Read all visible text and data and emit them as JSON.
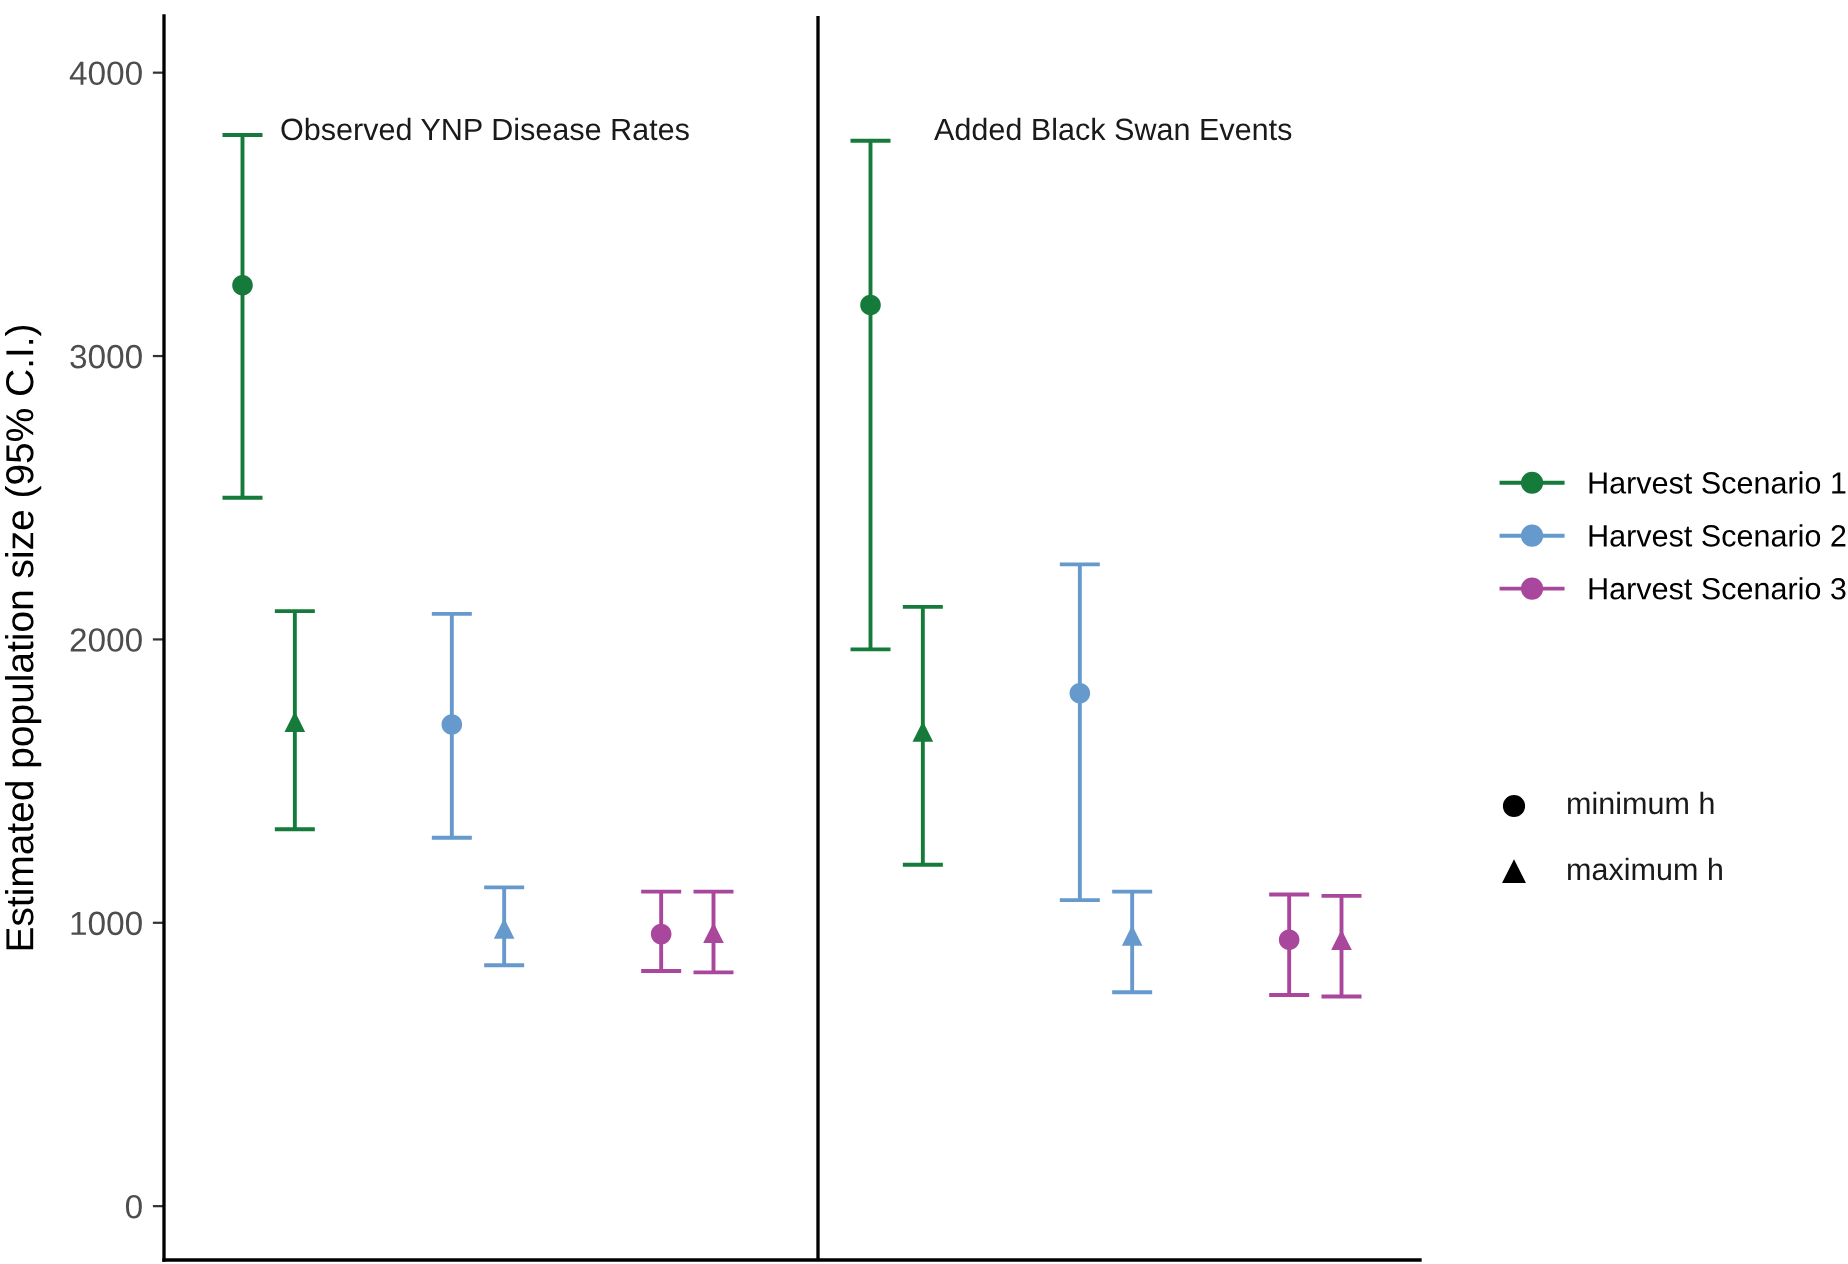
{
  "chart_data": {
    "type": "scatter",
    "ylabel": "Estimated population size (95% C.I.)",
    "categories": [
      null,
      null,
      null,
      null,
      null,
      null
    ],
    "ylim": [
      -190,
      4200
    ],
    "yticks": [
      0,
      1000,
      2000,
      3000,
      4000
    ],
    "tick_labels": "y",
    "grid": false,
    "legend": "right",
    "annotations": [
      "Observed YNP Disease Rates",
      "Added Black Swan Events",
      "minimum h",
      "maximum h"
    ],
    "series": [
      {
        "name": "Harvest Scenario 1",
        "color": "#157a3a",
        "marker": "circle",
        "values": [
          3250,
          null,
          null,
          3180,
          null,
          null
        ],
        "errors": [
          [
            2500,
            3780
          ],
          null,
          null,
          [
            1965,
            3760
          ],
          null,
          null
        ]
      },
      {
        "color": "#157a3a",
        "marker": "triangle",
        "values": [
          1710,
          null,
          null,
          1675,
          null,
          null
        ],
        "errors": [
          [
            1330,
            2100
          ],
          null,
          null,
          [
            1205,
            2115
          ],
          null,
          null
        ]
      },
      {
        "name": "Harvest Scenario 2",
        "color": "#6699cc",
        "marker": "circle",
        "values": [
          null,
          1700,
          null,
          null,
          1810,
          null
        ],
        "errors": [
          null,
          [
            1300,
            2090
          ],
          null,
          null,
          [
            1080,
            2265
          ],
          null
        ]
      },
      {
        "color": "#6699cc",
        "marker": "triangle",
        "values": [
          null,
          980,
          null,
          null,
          955,
          null
        ],
        "errors": [
          null,
          [
            850,
            1125
          ],
          null,
          null,
          [
            755,
            1110
          ],
          null
        ]
      },
      {
        "name": "Harvest Scenario 3",
        "color": "#a8479c",
        "marker": "circle",
        "values": [
          null,
          null,
          960,
          null,
          null,
          940
        ],
        "errors": [
          null,
          null,
          [
            830,
            1110
          ],
          null,
          null,
          [
            745,
            1100
          ]
        ]
      },
      {
        "color": "#a8479c",
        "marker": "triangle",
        "values": [
          null,
          null,
          965,
          null,
          null,
          940
        ],
        "errors": [
          null,
          null,
          [
            825,
            1110
          ],
          null,
          null,
          [
            740,
            1095
          ]
        ]
      }
    ]
  }
}
